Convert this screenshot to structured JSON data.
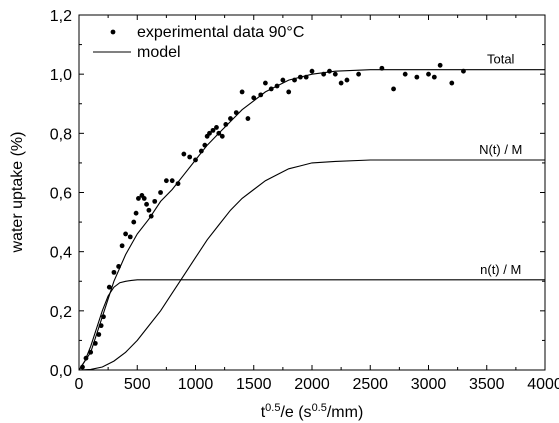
{
  "chart_data": {
    "type": "scatter",
    "xlabel": "t",
    "xlabel_sup": "0.5",
    "xlabel_mid": "/e  (s",
    "xlabel_sup2": "0.5",
    "xlabel_end": "/mm)",
    "ylabel": "water uptake (%)",
    "xlim": [
      0,
      4000
    ],
    "ylim": [
      0.0,
      1.2
    ],
    "x_ticks": [
      "0",
      "500",
      "1000",
      "1500",
      "2000",
      "2500",
      "3000",
      "3500",
      "4000"
    ],
    "y_ticks": [
      "0,0",
      "0,2",
      "0,4",
      "0,6",
      "0,8",
      "1,0",
      "1,2"
    ],
    "grid": false,
    "legend_position": "top-left",
    "legend": [
      {
        "label": "experimental data 90°C",
        "style": "dot"
      },
      {
        "label": "model",
        "style": "line"
      }
    ],
    "curve_labels": [
      "Total",
      "N(t) / M",
      "n(t) / M"
    ],
    "series": [
      {
        "name": "experimental data 90°C",
        "style": "points",
        "points": [
          [
            30,
            0.01
          ],
          [
            60,
            0.04
          ],
          [
            100,
            0.06
          ],
          [
            140,
            0.09
          ],
          [
            170,
            0.12
          ],
          [
            190,
            0.15
          ],
          [
            210,
            0.18
          ],
          [
            260,
            0.28
          ],
          [
            300,
            0.33
          ],
          [
            340,
            0.35
          ],
          [
            370,
            0.42
          ],
          [
            400,
            0.46
          ],
          [
            440,
            0.45
          ],
          [
            470,
            0.5
          ],
          [
            490,
            0.53
          ],
          [
            510,
            0.58
          ],
          [
            540,
            0.59
          ],
          [
            560,
            0.58
          ],
          [
            580,
            0.56
          ],
          [
            600,
            0.54
          ],
          [
            620,
            0.52
          ],
          [
            650,
            0.57
          ],
          [
            700,
            0.6
          ],
          [
            750,
            0.64
          ],
          [
            800,
            0.64
          ],
          [
            850,
            0.63
          ],
          [
            900,
            0.73
          ],
          [
            950,
            0.72
          ],
          [
            1000,
            0.71
          ],
          [
            1050,
            0.74
          ],
          [
            1080,
            0.76
          ],
          [
            1100,
            0.79
          ],
          [
            1120,
            0.8
          ],
          [
            1150,
            0.81
          ],
          [
            1180,
            0.82
          ],
          [
            1200,
            0.8
          ],
          [
            1230,
            0.79
          ],
          [
            1260,
            0.83
          ],
          [
            1300,
            0.85
          ],
          [
            1350,
            0.87
          ],
          [
            1400,
            0.94
          ],
          [
            1450,
            0.85
          ],
          [
            1500,
            0.92
          ],
          [
            1560,
            0.93
          ],
          [
            1600,
            0.97
          ],
          [
            1650,
            0.95
          ],
          [
            1700,
            0.96
          ],
          [
            1750,
            0.98
          ],
          [
            1800,
            0.94
          ],
          [
            1850,
            0.98
          ],
          [
            1900,
            0.99
          ],
          [
            1950,
            0.99
          ],
          [
            2000,
            1.01
          ],
          [
            2100,
            1.0
          ],
          [
            2150,
            1.01
          ],
          [
            2200,
            1.0
          ],
          [
            2250,
            0.97
          ],
          [
            2300,
            0.98
          ],
          [
            2400,
            1.0
          ],
          [
            2600,
            1.02
          ],
          [
            2700,
            0.95
          ],
          [
            2800,
            1.0
          ],
          [
            2900,
            0.99
          ],
          [
            3000,
            1.0
          ],
          [
            3050,
            0.99
          ],
          [
            3100,
            1.03
          ],
          [
            3200,
            0.97
          ],
          [
            3300,
            1.01
          ]
        ]
      },
      {
        "name": "model",
        "style": "line",
        "curves": [
          {
            "label": "Total",
            "points": [
              [
                0,
                0.0
              ],
              [
                100,
                0.06
              ],
              [
                200,
                0.18
              ],
              [
                300,
                0.3
              ],
              [
                400,
                0.39
              ],
              [
                500,
                0.46
              ],
              [
                600,
                0.51
              ],
              [
                700,
                0.57
              ],
              [
                800,
                0.61
              ],
              [
                900,
                0.66
              ],
              [
                1000,
                0.71
              ],
              [
                1100,
                0.76
              ],
              [
                1200,
                0.8
              ],
              [
                1300,
                0.84
              ],
              [
                1400,
                0.88
              ],
              [
                1500,
                0.91
              ],
              [
                1600,
                0.94
              ],
              [
                1700,
                0.96
              ],
              [
                1800,
                0.98
              ],
              [
                1900,
                0.99
              ],
              [
                2000,
                1.0
              ],
              [
                2200,
                1.01
              ],
              [
                2500,
                1.015
              ],
              [
                3000,
                1.015
              ],
              [
                4000,
                1.015
              ]
            ]
          },
          {
            "label": "N(t) / M",
            "points": [
              [
                0,
                0.0
              ],
              [
                100,
                0.002
              ],
              [
                200,
                0.01
              ],
              [
                300,
                0.03
              ],
              [
                400,
                0.06
              ],
              [
                500,
                0.1
              ],
              [
                600,
                0.15
              ],
              [
                700,
                0.2
              ],
              [
                800,
                0.26
              ],
              [
                900,
                0.32
              ],
              [
                1000,
                0.38
              ],
              [
                1100,
                0.44
              ],
              [
                1200,
                0.49
              ],
              [
                1300,
                0.54
              ],
              [
                1400,
                0.58
              ],
              [
                1500,
                0.61
              ],
              [
                1600,
                0.64
              ],
              [
                1700,
                0.66
              ],
              [
                1800,
                0.68
              ],
              [
                1900,
                0.69
              ],
              [
                2000,
                0.7
              ],
              [
                2200,
                0.705
              ],
              [
                2500,
                0.71
              ],
              [
                3000,
                0.71
              ],
              [
                4000,
                0.71
              ]
            ]
          },
          {
            "label": "n(t) / M",
            "points": [
              [
                0,
                0.0
              ],
              [
                50,
                0.03
              ],
              [
                100,
                0.08
              ],
              [
                150,
                0.14
              ],
              [
                200,
                0.2
              ],
              [
                250,
                0.25
              ],
              [
                300,
                0.28
              ],
              [
                350,
                0.295
              ],
              [
                400,
                0.3
              ],
              [
                450,
                0.303
              ],
              [
                500,
                0.305
              ],
              [
                700,
                0.305
              ],
              [
                1000,
                0.305
              ],
              [
                2000,
                0.305
              ],
              [
                4000,
                0.305
              ]
            ]
          }
        ]
      }
    ]
  }
}
